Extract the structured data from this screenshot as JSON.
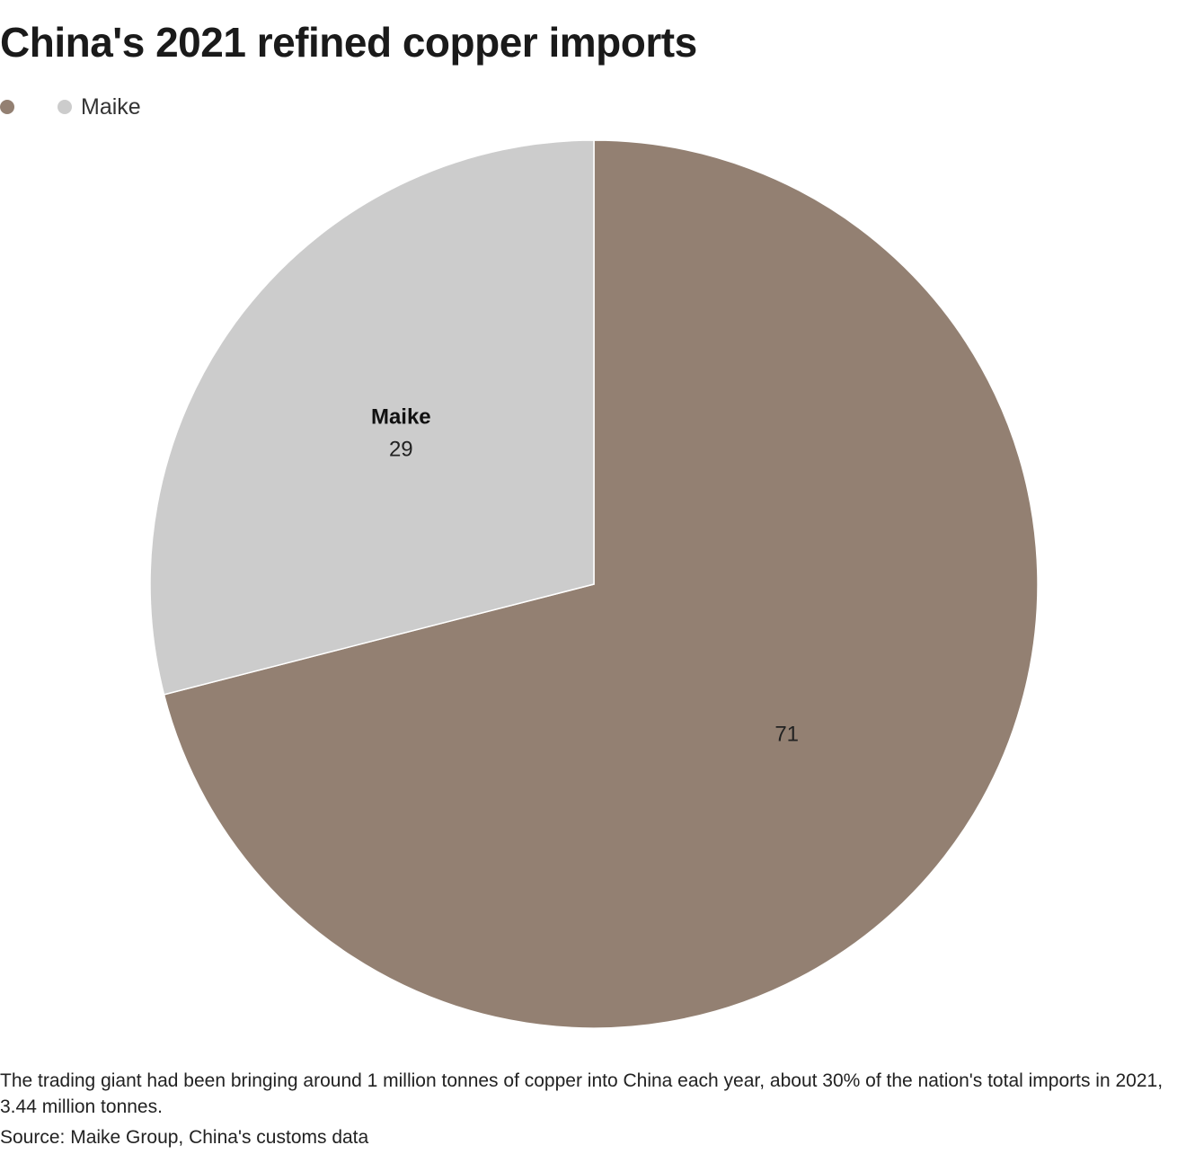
{
  "title": "China's 2021 refined copper imports",
  "legend": [
    {
      "label": "",
      "color": "#938072"
    },
    {
      "label": "Maike",
      "color": "#cccccc"
    }
  ],
  "chart_data": {
    "type": "pie",
    "title": "China's 2021 refined copper imports",
    "slices": [
      {
        "label": "",
        "value": 71,
        "color": "#938072"
      },
      {
        "label": "Maike",
        "value": 29,
        "color": "#cccccc"
      }
    ],
    "legend_position": "top-left"
  },
  "caption": "The trading giant had been bringing around 1 million tonnes of copper into China each year, about 30% of the nation's total imports in 2021, 3.44 million tonnes.",
  "source": "Source: Maike Group, China's customs data"
}
